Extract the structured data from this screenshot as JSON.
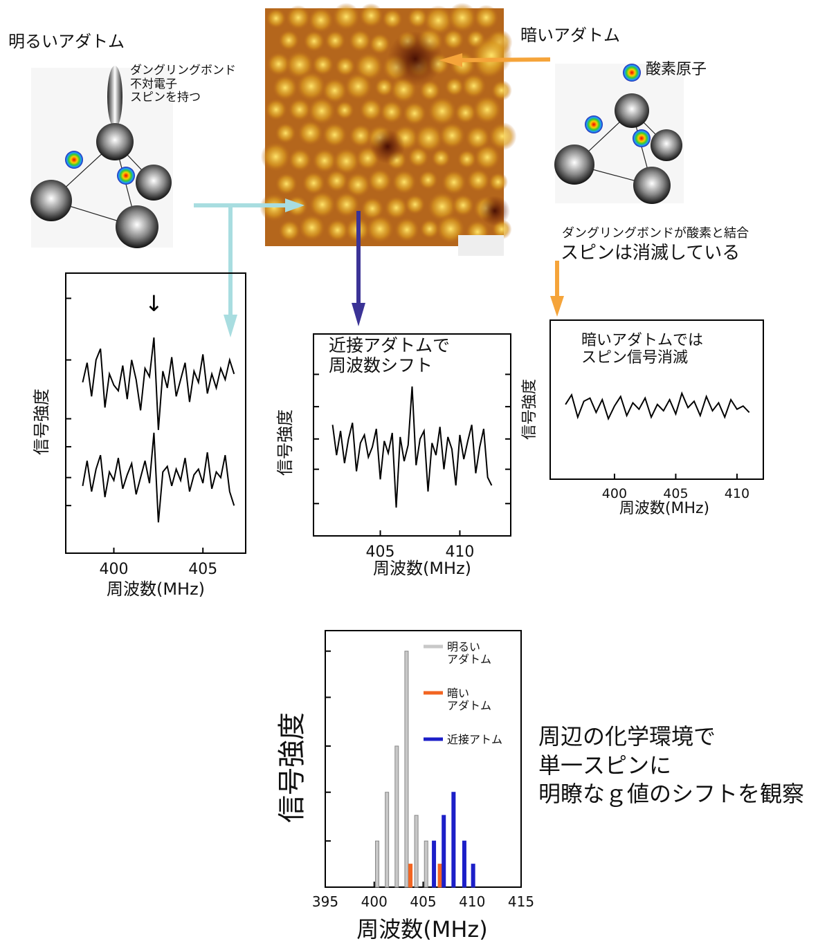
{
  "annotations": {
    "bright_adatom": "明るいアダトム",
    "dangling_bond": "ダングリングボンド\n不対電子\nスピンを持つ",
    "dark_adatom": "暗いアダトム",
    "oxygen_atom": "酸素原子",
    "oxygen_bond": "ダングリングボンドが酸素と結合",
    "spin_vanished": "スピンは消滅している",
    "conclusion": "周辺の化学環境で\n単一スピンに\n明瞭なｇ値のシフトを観察"
  },
  "chart_data": [
    {
      "type": "line",
      "ylabel": "信号強度",
      "xlabel": "周波数(MHz)",
      "annotation": "↓",
      "xlim": [
        397.3,
        407.4
      ],
      "xticks": [
        400,
        405
      ],
      "ylim": [
        0,
        10
      ],
      "yticks": [
        1.7,
        2.7,
        3.8,
        4.8,
        6.9,
        9.1
      ],
      "x": [
        398.25,
        398.5,
        398.75,
        399,
        399.25,
        399.5,
        399.75,
        400,
        400.25,
        400.5,
        400.75,
        401,
        401.25,
        401.5,
        401.75,
        402,
        402.25,
        402.5,
        402.75,
        403,
        403.25,
        403.5,
        403.75,
        404,
        404.25,
        404.5,
        404.75,
        405,
        405.25,
        405.5,
        405.75,
        406,
        406.25,
        406.5,
        406.75
      ],
      "series": [
        {
          "color": "#000000",
          "values": [
            6.1,
            6.8,
            5.6,
            6.9,
            7.3,
            5.2,
            6.4,
            6.0,
            5.8,
            6.7,
            5.5,
            6.9,
            6.2,
            5.1,
            6.6,
            6.3,
            7.7,
            4.4,
            6.5,
            5.9,
            7.0,
            5.6,
            6.2,
            6.8,
            5.4,
            6.5,
            6.1,
            7.1,
            5.7,
            6.4,
            5.9,
            6.6,
            6.2,
            6.9,
            6.4
          ]
        },
        {
          "color": "#000000",
          "values": [
            2.4,
            3.3,
            2.2,
            3.0,
            3.5,
            2.0,
            2.9,
            2.6,
            3.4,
            2.3,
            2.8,
            3.2,
            2.1,
            2.7,
            3.3,
            2.5,
            4.3,
            1.1,
            2.9,
            3.1,
            2.4,
            3.0,
            2.6,
            3.4,
            2.2,
            2.8,
            3.0,
            2.5,
            3.6,
            2.3,
            2.9,
            2.7,
            3.5,
            2.2,
            1.7
          ]
        }
      ]
    },
    {
      "type": "line",
      "ylabel": "信号強度",
      "xlabel": "周波数(MHz)",
      "annotation": "近接アダトムで\n周波数シフト",
      "xlim": [
        400.8,
        413.2
      ],
      "xticks": [
        405,
        410
      ],
      "ylim": [
        0,
        10
      ],
      "yticks": [
        1.6,
        3.3,
        4.8,
        6.4,
        8.0
      ],
      "x": [
        402,
        402.25,
        402.5,
        402.75,
        403,
        403.25,
        403.5,
        403.75,
        404,
        404.25,
        404.5,
        404.75,
        405,
        405.25,
        405.5,
        405.75,
        406,
        406.25,
        406.5,
        406.75,
        407,
        407.25,
        407.5,
        407.75,
        408,
        408.25,
        408.5,
        408.75,
        409,
        409.25,
        409.5,
        409.75,
        410,
        410.25,
        410.5,
        410.75,
        411,
        411.25,
        411.5,
        411.75,
        412
      ],
      "series": [
        {
          "color": "#000000",
          "values": [
            5.5,
            4.0,
            5.2,
            3.6,
            4.8,
            5.6,
            3.2,
            4.6,
            5.0,
            3.9,
            4.4,
            5.3,
            2.8,
            4.7,
            4.1,
            5.1,
            1.4,
            4.9,
            3.7,
            4.5,
            7.4,
            3.5,
            4.8,
            5.2,
            2.2,
            4.6,
            4.0,
            5.4,
            3.3,
            4.9,
            4.3,
            2.5,
            5.0,
            3.8,
            4.7,
            5.5,
            3.1,
            4.4,
            5.3,
            2.9,
            2.5
          ]
        }
      ]
    },
    {
      "type": "line",
      "ylabel": "信号強度",
      "xlabel": "周波数(MHz)",
      "annotation": "暗いアダトムでは\nスピン信号消滅",
      "xlim": [
        394.75,
        412.15
      ],
      "xticks": [
        400,
        405,
        410
      ],
      "ylim": [
        0,
        10
      ],
      "x": [
        396,
        396.5,
        397,
        397.5,
        398,
        398.5,
        399,
        399.5,
        400,
        400.5,
        401,
        401.5,
        402,
        402.5,
        403,
        403.5,
        404,
        404.5,
        405,
        405.5,
        406,
        406.5,
        407,
        407.5,
        408,
        408.5,
        409,
        409.5,
        410,
        410.5,
        411
      ],
      "series": [
        {
          "color": "#000000",
          "values": [
            4.7,
            5.3,
            3.9,
            4.9,
            5.1,
            4.2,
            5.0,
            3.8,
            4.6,
            5.2,
            4.0,
            4.8,
            4.4,
            5.1,
            3.9,
            4.7,
            4.3,
            5.0,
            4.1,
            5.4,
            4.5,
            4.9,
            4.0,
            5.2,
            4.3,
            4.8,
            3.9,
            5.0,
            4.4,
            4.6,
            4.2
          ]
        }
      ]
    },
    {
      "type": "bar",
      "ylabel": "信号強度",
      "xlabel": "周波数(MHz)",
      "xlim": [
        395,
        415
      ],
      "xticks": [
        395,
        400,
        405,
        410,
        415
      ],
      "ylim": [
        0,
        10
      ],
      "yticks": [
        1.8,
        3.7,
        5.5,
        7.4,
        9.2
      ],
      "series": [
        {
          "name": "明るい\nアダトム",
          "color": "#c8c8c8",
          "x": [
            400.3,
            401.3,
            402.3,
            403.3,
            404.3,
            405.3
          ],
          "values": [
            1.8,
            3.7,
            5.5,
            9.2,
            2.8,
            1.8
          ]
        },
        {
          "name": "暗い\nアダトム",
          "color": "#f26522",
          "x": [
            403.7,
            406.7
          ],
          "values": [
            0.9,
            0.9
          ]
        },
        {
          "name": "近接アトム",
          "color": "#1c1fc8",
          "x": [
            406.1,
            407.1,
            408.1,
            409.2,
            410.1
          ],
          "values": [
            1.8,
            2.8,
            3.7,
            1.8,
            0.9
          ]
        }
      ]
    }
  ]
}
